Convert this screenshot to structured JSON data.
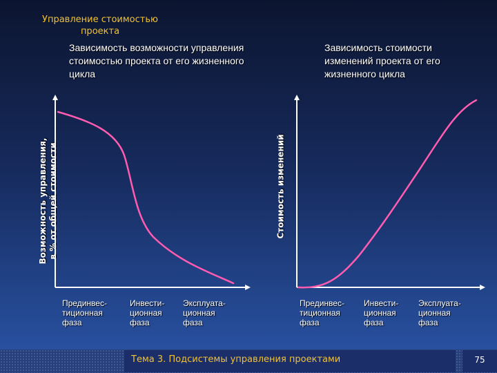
{
  "slide": {
    "title": "Управление стоимостью проекта",
    "footer": "Тема 3. Подсистемы управления проектами",
    "page_number": "75"
  },
  "chart_data": [
    {
      "type": "line",
      "title": "Зависимость возможности управления стоимостью проекта от его жизненного цикла",
      "ylabel_line1": "Возможность управления,",
      "ylabel_line2": "в % от общей стоимости",
      "categories": [
        "Прединвес-\nтиционная\nфаза",
        "Инвести-\nционная\nфаза",
        "Эксплуата-\nционная\nфаза"
      ],
      "series": [
        {
          "color": "#ff5cb0",
          "trend": "decreasing"
        }
      ]
    },
    {
      "type": "line",
      "title": "Зависимость стоимости изменений проекта от его жизненного цикла",
      "ylabel": "Стоимость изменений",
      "categories": [
        "Прединвес-\nтиционная\nфаза",
        "Инвести-\nционная\nфаза",
        "Эксплуата-\nционная\nфаза"
      ],
      "series": [
        {
          "color": "#ff5cb0",
          "trend": "increasing"
        }
      ]
    }
  ]
}
